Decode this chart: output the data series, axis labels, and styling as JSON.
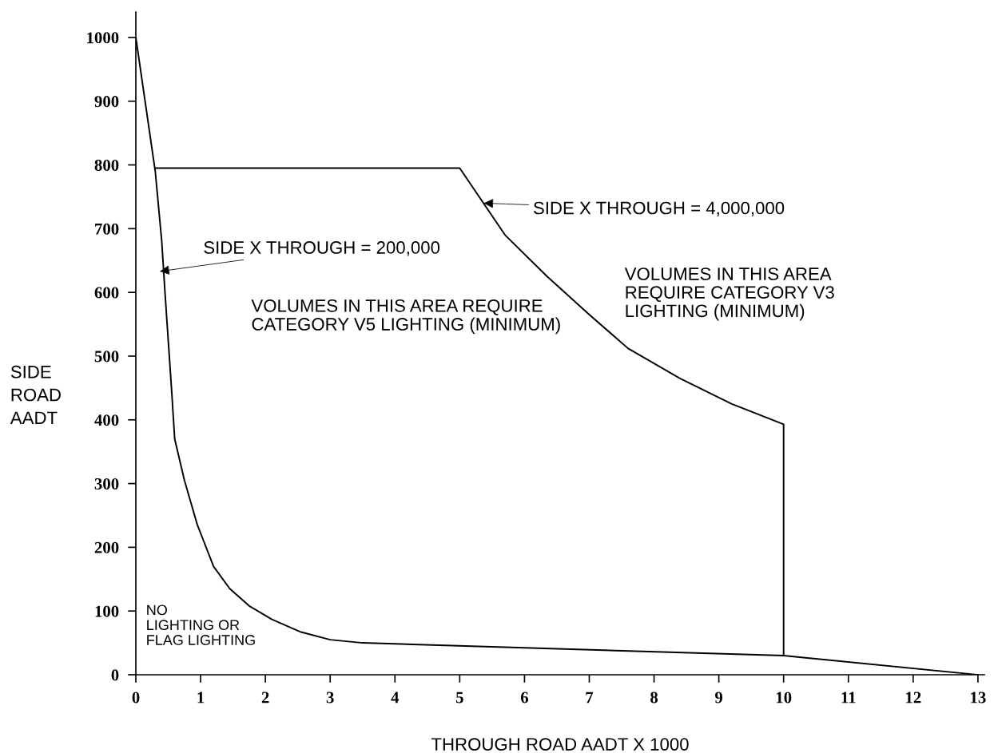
{
  "chart_data": {
    "type": "line",
    "xlabel": "THROUGH ROAD AADT X 1000",
    "ylabel": "SIDE\nROAD\nAADT",
    "xlim": [
      0,
      13.1
    ],
    "ylim": [
      0,
      1040
    ],
    "xticks": [
      0,
      1,
      2,
      3,
      4,
      5,
      6,
      7,
      8,
      9,
      10,
      11,
      12,
      13
    ],
    "yticks": [
      0,
      100,
      200,
      300,
      400,
      500,
      600,
      700,
      800,
      900,
      1000
    ],
    "grid": false,
    "marker": "none",
    "line_style": "solid",
    "series": [
      {
        "color": "#000000",
        "x": [
          0,
          0.3,
          0.4,
          0.45,
          0.55,
          0.6,
          0.75,
          0.95,
          1.2,
          1.45,
          1.75,
          2.1,
          2.55,
          3,
          3.5,
          10,
          13
        ],
        "values": [
          1000,
          790,
          680,
          600,
          450,
          370,
          305,
          235,
          170,
          135,
          108,
          87,
          67,
          55,
          50,
          30,
          0
        ]
      },
      {
        "color": "#000000",
        "x": [
          0.3,
          5,
          5.7,
          6.35,
          7.0,
          7.6,
          8.4,
          9.2,
          10,
          10
        ],
        "values": [
          795,
          795,
          690,
          625,
          565,
          512,
          465,
          425,
          393,
          30
        ]
      }
    ],
    "annotations": [
      {
        "text": "SIDE X THROUGH = 200,000",
        "x": 0.37,
        "y": 633
      },
      {
        "text": "SIDE X THROUGH = 4,000,000",
        "x": 5.37,
        "y": 740
      },
      "VOLUMES IN THIS AREA REQUIRE\nCATEGORY V5 LIGHTING (MINIMUM)",
      "VOLUMES IN THIS AREA\nREQUIRE CATEGORY V3\nLIGHTING (MINIMUM)",
      "NO\nLIGHTING OR\nFLAG LIGHTING"
    ]
  }
}
